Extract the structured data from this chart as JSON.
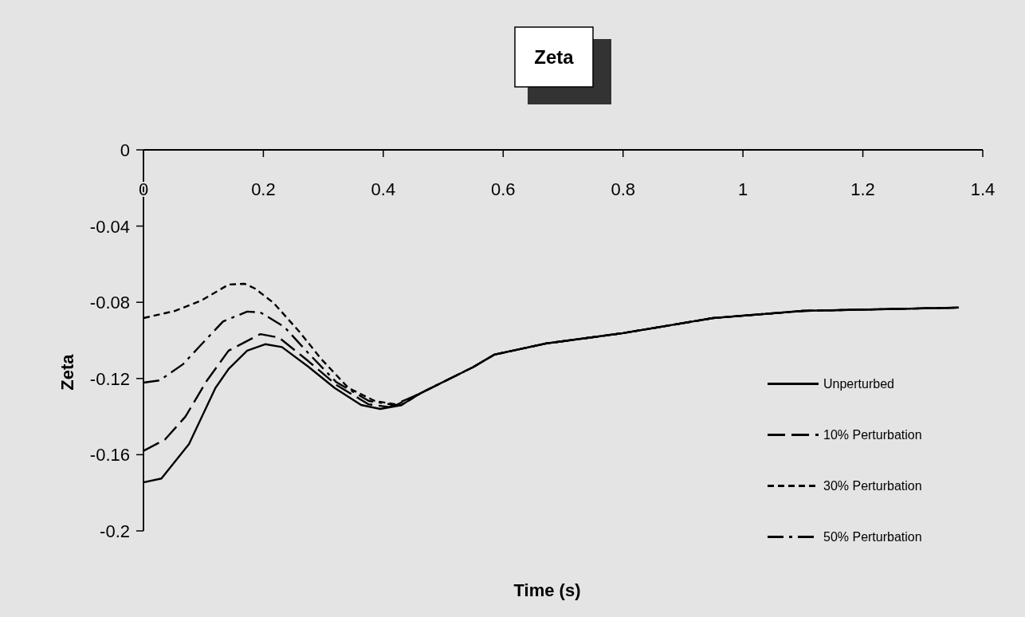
{
  "chart_data": {
    "type": "line",
    "title": "Zeta",
    "xlabel": "Time (s)",
    "ylabel": "Zeta",
    "xlim": [
      0,
      1.4
    ],
    "xticks": [
      0,
      0.2,
      0.4,
      0.6,
      0.8,
      1,
      1.2,
      1.4
    ],
    "ylim": [
      -0.2,
      0
    ],
    "yticks": [
      -0.2,
      -0.16,
      -0.12,
      -0.08,
      -0.04,
      0
    ],
    "grid": false,
    "legend": "bottom right",
    "marker": "none",
    "series": [
      {
        "name": "Unperturbed",
        "color": "#000000",
        "line_style": "solid",
        "x": [
          0,
          0.03,
          0.076,
          0.12,
          0.142,
          0.173,
          0.203,
          0.231,
          0.275,
          0.319,
          0.363,
          0.395,
          0.43,
          0.463,
          0.55,
          0.585,
          0.67,
          0.8,
          0.95,
          1.1,
          1.36
        ],
        "values": [
          -0.1745,
          -0.1725,
          -0.1544,
          -0.125,
          -0.115,
          -0.1054,
          -0.102,
          -0.1035,
          -0.1138,
          -0.125,
          -0.1339,
          -0.136,
          -0.134,
          -0.1276,
          -0.114,
          -0.1075,
          -0.1017,
          -0.0962,
          -0.0883,
          -0.0845,
          -0.0828
        ]
      },
      {
        "name": "10% Perturbation",
        "color": "#000000",
        "line_style": "dashed",
        "x": [
          0,
          0.036,
          0.07,
          0.106,
          0.142,
          0.195,
          0.226,
          0.275,
          0.322,
          0.375,
          0.41,
          0.463,
          0.55,
          0.585,
          0.67,
          0.8,
          0.95,
          1.1,
          1.36
        ],
        "values": [
          -0.158,
          -0.152,
          -0.14,
          -0.121,
          -0.1054,
          -0.0967,
          -0.0985,
          -0.1109,
          -0.1234,
          -0.1335,
          -0.135,
          -0.1276,
          -0.114,
          -0.1075,
          -0.1017,
          -0.0962,
          -0.0883,
          -0.0845,
          -0.0828
        ]
      },
      {
        "name": "30% Perturbation",
        "color": "#000000",
        "line_style": "dotted",
        "x": [
          0,
          0.053,
          0.097,
          0.142,
          0.169,
          0.186,
          0.217,
          0.261,
          0.296,
          0.342,
          0.386,
          0.43,
          0.463,
          0.55,
          0.585,
          0.67,
          0.8,
          0.95,
          1.1,
          1.36
        ],
        "values": [
          -0.0883,
          -0.0845,
          -0.079,
          -0.0707,
          -0.0703,
          -0.0728,
          -0.0803,
          -0.0958,
          -0.1096,
          -0.125,
          -0.1318,
          -0.134,
          -0.1276,
          -0.114,
          -0.1075,
          -0.1017,
          -0.0962,
          -0.0883,
          -0.0845,
          -0.0828
        ]
      },
      {
        "name": "50% Perturbation",
        "color": "#000000",
        "line_style": "dashdot",
        "x": [
          0,
          0.027,
          0.066,
          0.097,
          0.133,
          0.173,
          0.195,
          0.235,
          0.275,
          0.322,
          0.376,
          0.421,
          0.463,
          0.55,
          0.585,
          0.67,
          0.8,
          0.95,
          1.1,
          1.36
        ],
        "values": [
          -0.1222,
          -0.121,
          -0.1125,
          -0.102,
          -0.09,
          -0.0849,
          -0.0853,
          -0.0929,
          -0.1067,
          -0.122,
          -0.1318,
          -0.134,
          -0.1276,
          -0.114,
          -0.1075,
          -0.1017,
          -0.0962,
          -0.0883,
          -0.0845,
          -0.0828
        ]
      }
    ]
  }
}
